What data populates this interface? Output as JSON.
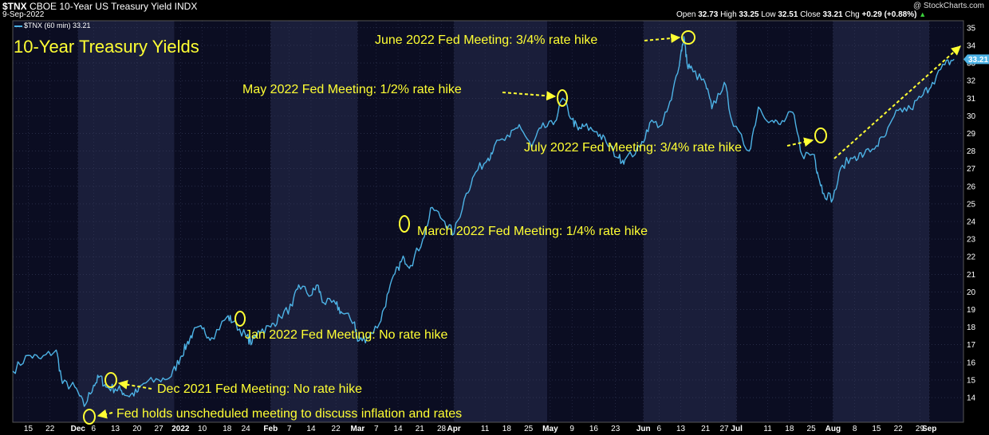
{
  "header": {
    "symbol": "$TNX",
    "name": "CBOE 10-Year US Treasury Yield INDX",
    "date": "9-Sep-2022",
    "open_label": "Open",
    "open": "32.73",
    "high_label": "High",
    "high": "33.25",
    "low_label": "Low",
    "low": "32.51",
    "close_label": "Close",
    "close": "33.21",
    "chg_label": "Chg",
    "chg": "+0.29 (+0.88%)",
    "watermark": "@ StockCharts.com",
    "legend": "$TNX (60 min) 33.21"
  },
  "chart_data": {
    "type": "line",
    "title": "10-Year Treasury Yields",
    "ylim": [
      12.6,
      35.4
    ],
    "yticks": [
      14,
      15,
      16,
      17,
      18,
      19,
      20,
      21,
      22,
      23,
      24,
      25,
      26,
      27,
      28,
      29,
      30,
      31,
      32,
      33,
      34,
      35
    ],
    "last_value_label": "33.21",
    "x_tick_labels": [
      "15",
      "22",
      "Dec",
      "6",
      "13",
      "20",
      "27",
      "2022",
      "10",
      "18",
      "24",
      "Feb",
      "7",
      "14",
      "22",
      "Mar",
      "7",
      "14",
      "21",
      "28",
      "Apr",
      "11",
      "18",
      "25",
      "May",
      "9",
      "16",
      "23",
      "Jun",
      "6",
      "13",
      "21",
      "27",
      "Jul",
      "11",
      "18",
      "25",
      "Aug",
      "8",
      "15",
      "22",
      "29",
      "Sep"
    ],
    "series": [
      {
        "x": [
          "2021-11-10",
          "2021-11-15",
          "2021-11-19",
          "2021-11-24",
          "2021-11-26",
          "2021-11-30",
          "2021-12-03",
          "2021-12-06",
          "2021-12-08",
          "2021-12-10",
          "2021-12-13",
          "2021-12-15",
          "2021-12-17",
          "2021-12-20",
          "2021-12-22",
          "2021-12-27",
          "2021-12-31",
          "2022-01-03",
          "2022-01-05",
          "2022-01-07",
          "2022-01-10",
          "2022-01-13",
          "2022-01-18",
          "2022-01-20",
          "2022-01-24",
          "2022-01-26",
          "2022-01-28",
          "2022-02-01",
          "2022-02-04",
          "2022-02-08",
          "2022-02-10",
          "2022-02-14",
          "2022-02-16",
          "2022-02-18",
          "2022-02-22",
          "2022-02-24",
          "2022-02-28",
          "2022-03-01",
          "2022-03-04",
          "2022-03-08",
          "2022-03-11",
          "2022-03-14",
          "2022-03-16",
          "2022-03-18",
          "2022-03-22",
          "2022-03-25",
          "2022-03-29",
          "2022-04-01",
          "2022-04-05",
          "2022-04-08",
          "2022-04-12",
          "2022-04-14",
          "2022-04-19",
          "2022-04-22",
          "2022-04-26",
          "2022-04-29",
          "2022-05-03",
          "2022-05-06",
          "2022-05-09",
          "2022-05-11",
          "2022-05-13",
          "2022-05-17",
          "2022-05-20",
          "2022-05-24",
          "2022-05-26",
          "2022-05-31",
          "2022-06-03",
          "2022-06-07",
          "2022-06-10",
          "2022-06-13",
          "2022-06-14",
          "2022-06-15",
          "2022-06-17",
          "2022-06-21",
          "2022-06-23",
          "2022-06-27",
          "2022-06-30",
          "2022-07-05",
          "2022-07-08",
          "2022-07-12",
          "2022-07-15",
          "2022-07-19",
          "2022-07-22",
          "2022-07-26",
          "2022-07-27",
          "2022-07-29",
          "2022-08-01",
          "2022-08-04",
          "2022-08-08",
          "2022-08-11",
          "2022-08-15",
          "2022-08-18",
          "2022-08-22",
          "2022-08-26",
          "2022-08-30",
          "2022-09-02",
          "2022-09-06",
          "2022-09-09"
        ],
        "values": [
          15.5,
          16.4,
          16.2,
          16.7,
          14.8,
          14.6,
          13.5,
          14.7,
          15.2,
          14.6,
          14.5,
          14.4,
          14.1,
          14.3,
          14.8,
          15.0,
          15.2,
          16.3,
          17.0,
          17.7,
          17.9,
          17.4,
          18.6,
          18.3,
          17.5,
          17.1,
          17.8,
          18.0,
          18.6,
          19.2,
          20.4,
          19.8,
          20.4,
          19.4,
          19.3,
          18.8,
          18.3,
          17.2,
          17.4,
          18.2,
          20.0,
          21.4,
          21.9,
          21.5,
          23.0,
          24.8,
          24.0,
          23.3,
          25.6,
          26.8,
          27.6,
          28.3,
          28.8,
          29.5,
          28.2,
          29.3,
          29.5,
          31.0,
          29.8,
          29.2,
          29.4,
          29.1,
          28.5,
          27.6,
          27.5,
          28.2,
          29.6,
          29.5,
          30.9,
          33.5,
          34.5,
          33.0,
          32.5,
          31.8,
          30.4,
          31.9,
          29.4,
          28.0,
          30.5,
          29.7,
          29.5,
          30.2,
          27.8,
          27.8,
          26.8,
          25.6,
          25.3,
          27.2,
          27.7,
          27.8,
          28.3,
          28.9,
          30.3,
          30.4,
          31.2,
          31.9,
          32.9,
          33.21
        ]
      }
    ]
  },
  "annotations": {
    "dec2021": "Dec 2021 Fed Meeting: No rate hike",
    "unscheduled": "Fed holds unscheduled meeting to discuss inflation and rates",
    "jan2022": "Jan 2022 Fed Meeting: No rate hike",
    "mar2022": "March 2022 Fed Meeting: 1/4% rate hike",
    "may2022": "May 2022 Fed Meeting: 1/2% rate hike",
    "jun2022": "June 2022 Fed Meeting: 3/4% rate hike",
    "jul2022": "July 2022 Fed Meeting: 3/4% rate hike"
  },
  "colors": {
    "line": "#4db3e6",
    "annotation": "#ffff33",
    "band_a": "#0b0d22",
    "band_b": "#1a1e3a",
    "grid": "#3a3f5e"
  }
}
